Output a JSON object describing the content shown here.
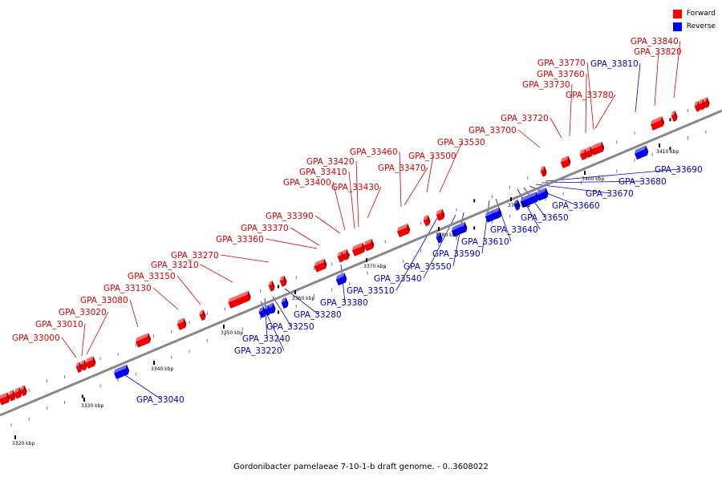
{
  "caption": "Gordonibacter pamelaeae 7-10-1-b draft genome. - 0..3608022",
  "legend": [
    {
      "label": "Forward",
      "color": "#ff0000"
    },
    {
      "label": "Reverse",
      "color": "#0000ff"
    }
  ],
  "scale_labels": [
    "3320 kbp",
    "3330 kbp",
    "3340 kbp",
    "3350 kbp",
    "3360 kbp",
    "3370 kbp",
    "3380 kbp",
    "3390 kbp",
    "3400 kbp",
    "3410 kbp"
  ],
  "forward_genes": [
    "GPA_33000",
    "GPA_33010",
    "GPA_33020",
    "GPA_33080",
    "GPA_33130",
    "GPA_33150",
    "GPA_33210",
    "GPA_33270",
    "GPA_33360",
    "GPA_33370",
    "GPA_33390",
    "GPA_33400",
    "GPA_33410",
    "GPA_33420",
    "GPA_33430",
    "GPA_33460",
    "GPA_33470",
    "GPA_33500",
    "GPA_33530",
    "GPA_33700",
    "GPA_33720",
    "GPA_33730",
    "GPA_33760",
    "GPA_33770",
    "GPA_33780",
    "GPA_33820",
    "GPA_33840"
  ],
  "reverse_genes": [
    "GPA_33040",
    "GPA_33220",
    "GPA_33240",
    "GPA_33250",
    "GPA_33280",
    "GPA_33380",
    "GPA_33510",
    "GPA_33540",
    "GPA_33550",
    "GPA_33590",
    "GPA_33610",
    "GPA_33640",
    "GPA_33650",
    "GPA_33660",
    "GPA_33670",
    "GPA_33680",
    "GPA_33690",
    "GPA_33810"
  ]
}
